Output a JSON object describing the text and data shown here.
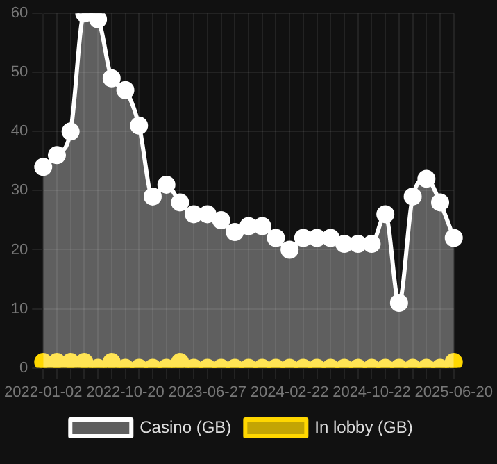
{
  "chart_data": {
    "type": "area",
    "categories": [
      "2022-01-02",
      null,
      null,
      null,
      null,
      null,
      "2022-10-20",
      null,
      null,
      null,
      null,
      null,
      "2023-06-27",
      null,
      null,
      null,
      null,
      null,
      "2024-02-22",
      null,
      null,
      null,
      null,
      null,
      "2024-10-22",
      null,
      null,
      null,
      null,
      null,
      "2025-06-20"
    ],
    "series": [
      {
        "name": "In lobby (GB)",
        "color": "#ffd700",
        "values": [
          1,
          1,
          1,
          1,
          0,
          1,
          0,
          0,
          0,
          0,
          1,
          0,
          0,
          0,
          0,
          0,
          0,
          0,
          0,
          0,
          0,
          0,
          0,
          0,
          0,
          0,
          0,
          0,
          0,
          0,
          1
        ]
      },
      {
        "name": "Casino (GB)",
        "color": "#ffffff",
        "values": [
          34,
          36,
          40,
          60,
          59,
          49,
          47,
          41,
          29,
          31,
          28,
          26,
          26,
          25,
          23,
          24,
          24,
          22,
          20,
          22,
          22,
          22,
          21,
          21,
          21,
          26,
          11,
          29,
          32,
          28,
          22
        ]
      }
    ],
    "ylim": [
      0,
      60
    ],
    "yticks": [
      0,
      10,
      20,
      30,
      40,
      50,
      60
    ],
    "grid": true,
    "legend": "bottom",
    "marker": "circle"
  }
}
